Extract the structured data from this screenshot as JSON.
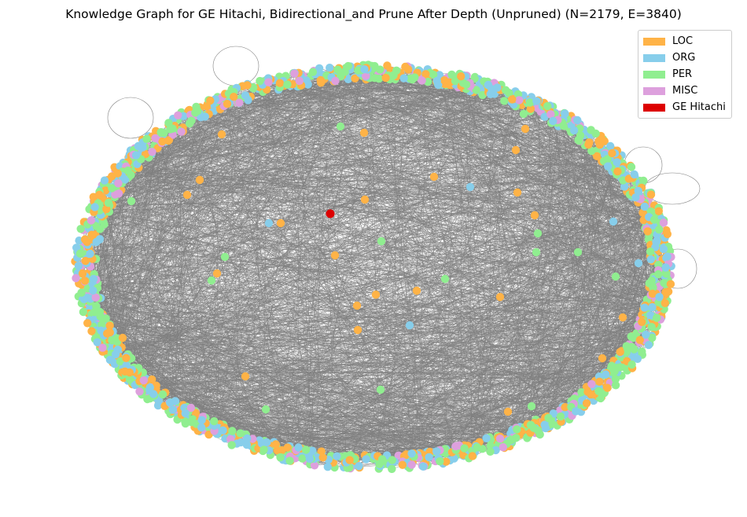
{
  "title": "Knowledge Graph for GE Hitachi, Bidirectional_and Prune After Depth (Unpruned) (N=2179, E=3840)",
  "legend": {
    "entries": [
      {
        "label": "LOC",
        "color": "#ffb347"
      },
      {
        "label": "ORG",
        "color": "#87ceeb"
      },
      {
        "label": "PER",
        "color": "#90ee90"
      },
      {
        "label": "MISC",
        "color": "#dda0dd"
      },
      {
        "label": "GE Hitachi",
        "color": "#dd0000"
      }
    ]
  },
  "graph": {
    "node_count": 2179,
    "edge_count": 3840,
    "edge_color": "#808080",
    "center_entity": "GE Hitachi",
    "layout": "spring-ring"
  }
}
